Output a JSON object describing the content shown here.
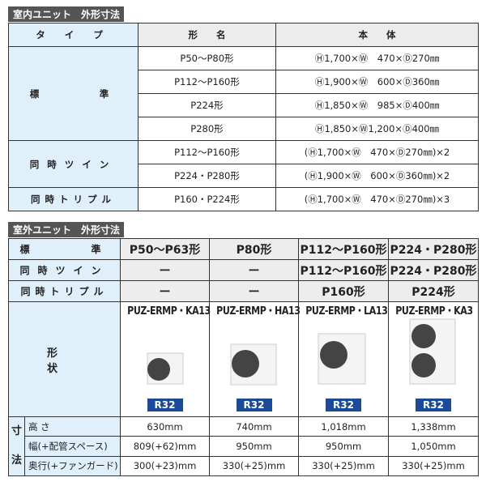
{
  "indoor": {
    "title": "室内ユニット　外形寸法",
    "headers": [
      "タ イ プ",
      "形　　名",
      "本　　体"
    ],
    "groups": [
      {
        "type": "標　　　準",
        "rows": [
          [
            "P50～P80形",
            "Ⓗ1,700×Ⓦ　470×Ⓓ270㎜"
          ],
          [
            "P112～P160形",
            "Ⓗ1,900×Ⓦ　600×Ⓓ360㎜"
          ],
          [
            "P224形",
            "Ⓗ1,850×Ⓦ　985×Ⓓ400㎜"
          ],
          [
            "P280形",
            "Ⓗ1,850×Ⓦ1,200×Ⓓ400㎜"
          ]
        ]
      },
      {
        "type": "同時ツイン",
        "rows": [
          [
            "P112～P160形",
            "(Ⓗ1,700×Ⓦ　470×Ⓓ270㎜)×2"
          ],
          [
            "P224・P280形",
            "(Ⓗ1,900×Ⓦ　600×Ⓓ360㎜)×2"
          ]
        ]
      },
      {
        "type": "同時トリプル",
        "rows": [
          [
            "P160・P224形",
            "(Ⓗ1,700×Ⓦ　470×Ⓓ270㎜)×3"
          ]
        ]
      }
    ]
  },
  "outdoor": {
    "title": "室外ユニット　外形寸法",
    "rows": [
      {
        "label": "標　　　準",
        "values": [
          "P50～P63形",
          "P80形",
          "P112～P160形",
          "P224・P280形"
        ]
      },
      {
        "label": "同時ツイン",
        "values": [
          "ー",
          "ー",
          "P112～P160形",
          "P224・P280形"
        ]
      },
      {
        "label": "同時トリプル",
        "values": [
          "ー",
          "ー",
          "P160形",
          "P224形"
        ]
      }
    ],
    "shape_label": "形　　状",
    "models": [
      "PUZ-ERMP・KA13",
      "PUZ-ERMP・HA13",
      "PUZ-ERMP・LA13",
      "PUZ-ERMP・KA3"
    ],
    "refrigerant": "R32",
    "dim_group": [
      "寸",
      "法"
    ],
    "dims": [
      {
        "label": "高 さ",
        "values": [
          "630mm",
          "740mm",
          "1,018mm",
          "1,338mm"
        ]
      },
      {
        "label": "幅(+配管スペース)",
        "values": [
          "809(+62)mm",
          "950mm",
          "950mm",
          "1,050mm"
        ]
      },
      {
        "label": "奥行(+ファンガード)",
        "values": [
          "300(+23)mm",
          "330(+25)mm",
          "330(+25)mm",
          "330(+25)mm"
        ]
      }
    ]
  }
}
